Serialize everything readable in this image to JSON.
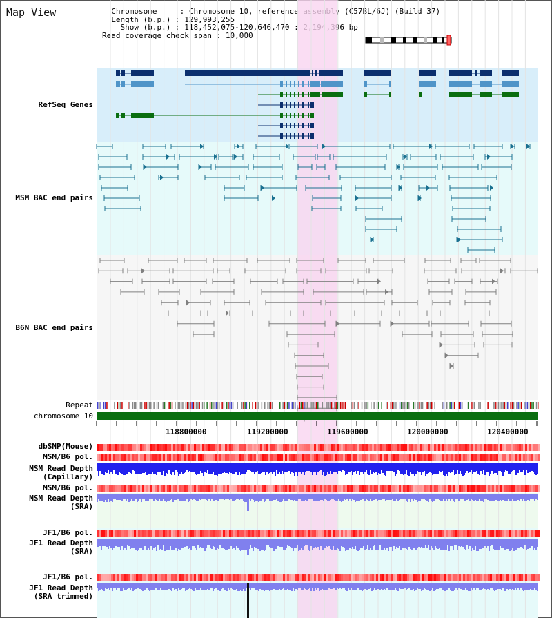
{
  "page": {
    "title": "Map View",
    "info": {
      "chromosome_key": "Chromosome",
      "chromosome_value": "Chromosome 10, reference assembly (C57BL/6J) (Build 37)",
      "length_key": "Length (b.p.)",
      "length_value": "129,993,255",
      "show_key": "Show (b.p.)",
      "show_value": "118,452,075-120,646,470 : 2,194,396 bp",
      "coverage_key": "Read coverage check span",
      "coverage_value": "10,000"
    }
  },
  "tracks": {
    "refseq": "RefSeq Genes",
    "msm_bac": "MSM BAC end pairs",
    "b6n_bac": "B6N BAC end pairs",
    "repeat": "Repeat",
    "chromosome": "chromosome 10",
    "dbsnp": "dbSNP(Mouse)",
    "msm_b6_pol_1": "MSM/B6 pol.",
    "msm_read_depth_cap_1": "MSM Read Depth",
    "msm_read_depth_cap_2": "(Capillary)",
    "msm_b6_pol_2": "MSM/B6 pol.",
    "msm_read_depth_sra_1": "MSM Read Depth",
    "msm_read_depth_sra_2": "(SRA)",
    "jf1_b6_pol_1": "JF1/B6 pol.",
    "jf1_read_depth_sra_1": "JF1 Read Depth",
    "jf1_read_depth_sra_2": "(SRA)",
    "jf1_b6_pol_2": "JF1/B6 pol.",
    "jf1_read_depth_trim_1": "JF1 Read Depth",
    "jf1_read_depth_trim_2": "(SRA trimmed)"
  },
  "axis": {
    "ticks": [
      "118800000",
      "119200000",
      "119600000",
      "120000000",
      "120400000"
    ]
  },
  "colors": {
    "refseq_bg": "#d8eefa",
    "msm_bg": "#e6fafa",
    "b6n_bg": "#f6f6f6",
    "highlight": "#f9d4f0",
    "gene_dark": "#0b2f6e",
    "gene_light": "#4f94c8",
    "gene_green": "#0a6e10",
    "msm_line": "#1a7090",
    "b6n_line": "#808080",
    "chromosome_bar": "#0a6e10",
    "msm_label": "#005577",
    "refseq_label": "#0000aa",
    "pol_label": "#dd8800",
    "depth_label": "#0000aa",
    "depth_blue": "#2222ee",
    "depth_light": "#8080ee"
  }
}
